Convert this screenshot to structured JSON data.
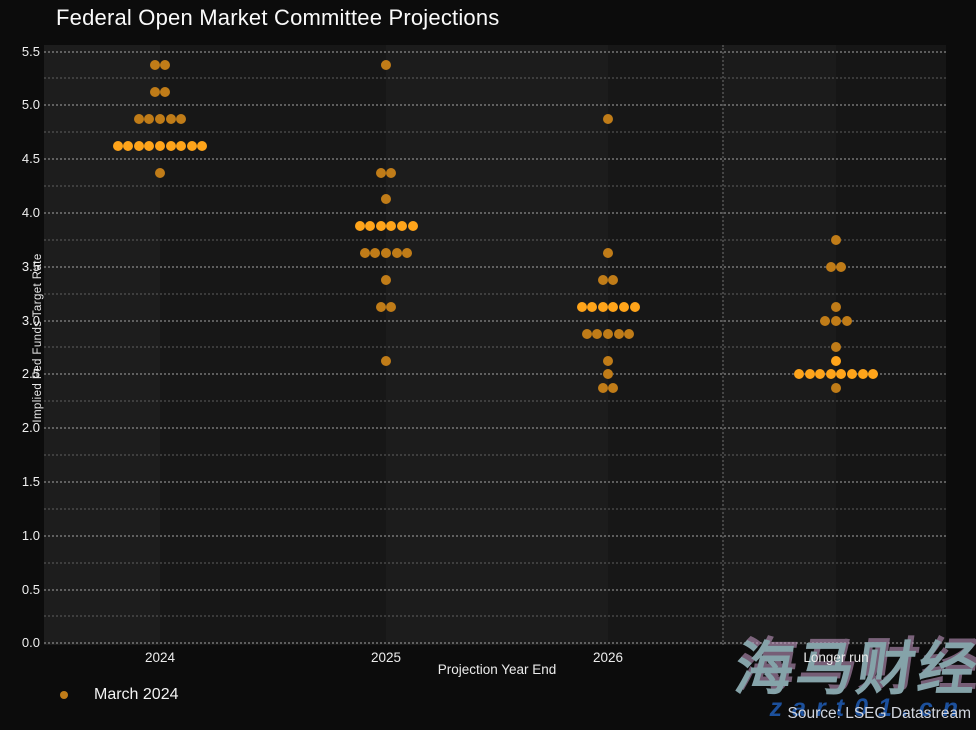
{
  "header": {
    "title": "Federal Open Market Committee Projections"
  },
  "chart_data": {
    "type": "scatter",
    "title": "Federal Open Market Committee Projections",
    "xlabel": "Projection Year End",
    "ylabel": "Implied Fed Funds Target Rate",
    "ylim": [
      0.0,
      5.5
    ],
    "y_tick_labels": [
      "0.0",
      "0.5",
      "1.0",
      "1.5",
      "2.0",
      "2.5",
      "3.0",
      "3.5",
      "4.0",
      "4.5",
      "5.0",
      "5.5"
    ],
    "minor_grid_step": 0.25,
    "grid": "dotted-horizontal",
    "legend_position": "bottom-left",
    "legend": [
      {
        "label": "March 2024",
        "color": "#c07c18"
      }
    ],
    "categories": [
      "2024",
      "2025",
      "2026",
      "Longer run"
    ],
    "series": [
      {
        "name": "March 2024",
        "columns": [
          {
            "category": "2024",
            "dots": [
              {
                "rate": 5.375,
                "count": 2
              },
              {
                "rate": 5.125,
                "count": 2
              },
              {
                "rate": 4.875,
                "count": 5
              },
              {
                "rate": 4.625,
                "count": 9,
                "highlight": true
              },
              {
                "rate": 4.375,
                "count": 1
              }
            ]
          },
          {
            "category": "2025",
            "dots": [
              {
                "rate": 5.375,
                "count": 1
              },
              {
                "rate": 4.375,
                "count": 2
              },
              {
                "rate": 4.125,
                "count": 1
              },
              {
                "rate": 3.875,
                "count": 6,
                "highlight": true
              },
              {
                "rate": 3.625,
                "count": 5
              },
              {
                "rate": 3.375,
                "count": 1
              },
              {
                "rate": 3.125,
                "count": 2
              },
              {
                "rate": 2.625,
                "count": 1
              }
            ]
          },
          {
            "category": "2026",
            "dots": [
              {
                "rate": 4.875,
                "count": 1
              },
              {
                "rate": 3.625,
                "count": 1
              },
              {
                "rate": 3.375,
                "count": 2
              },
              {
                "rate": 3.125,
                "count": 6,
                "highlight": true
              },
              {
                "rate": 2.875,
                "count": 5
              },
              {
                "rate": 2.625,
                "count": 1
              },
              {
                "rate": 2.5,
                "count": 1
              },
              {
                "rate": 2.375,
                "count": 2
              }
            ]
          },
          {
            "category": "Longer run",
            "dots": [
              {
                "rate": 3.75,
                "count": 1
              },
              {
                "rate": 3.5,
                "count": 2
              },
              {
                "rate": 3.125,
                "count": 1
              },
              {
                "rate": 3.0,
                "count": 3
              },
              {
                "rate": 2.75,
                "count": 1
              },
              {
                "rate": 2.625,
                "count": 1,
                "highlight": true
              },
              {
                "rate": 2.5,
                "count": 8,
                "highlight": true
              },
              {
                "rate": 2.375,
                "count": 1
              }
            ]
          }
        ]
      }
    ],
    "colors": {
      "dot_regular": "#c07c18",
      "dot_highlight": "#ffa41a",
      "plot_background": "#191919",
      "page_background": "#0c0c0c",
      "text": "#f0f0f0"
    }
  },
  "footer": {
    "source": "Source: LSEG Datastream",
    "watermark_cjk": "海马财经",
    "watermark_url": "zart01.cn"
  }
}
